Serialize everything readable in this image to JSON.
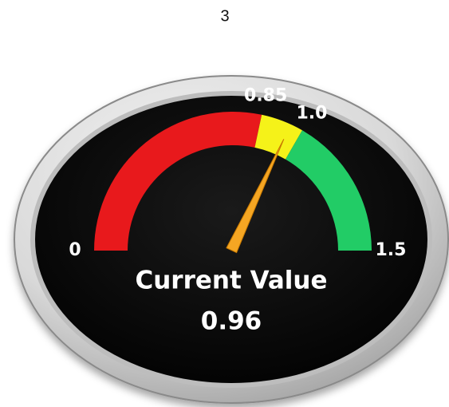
{
  "chart_data": {
    "type": "gauge",
    "title": "3",
    "caption": "Current Value",
    "value": 0.96,
    "range": [
      0,
      1.5
    ],
    "ticks": [
      0,
      0.85,
      {
        "value": 1,
        "label": "1.0"
      },
      1.5
    ],
    "bands": [
      {
        "from": 0,
        "to": 0.85,
        "color": "#e8191c"
      },
      {
        "from": 0.85,
        "to": 1,
        "color": "#f5f219"
      },
      {
        "from": 1,
        "to": 1.5,
        "color": "#22cc66"
      }
    ],
    "needle_color": "#f5a623"
  }
}
